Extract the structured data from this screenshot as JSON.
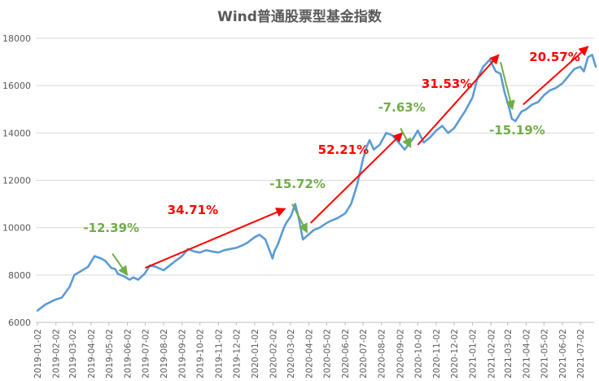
{
  "chart_data": {
    "type": "line",
    "title": "Wind普通股票型基金指数",
    "ylim": [
      6000,
      18000
    ],
    "yticks": [
      6000,
      8000,
      10000,
      12000,
      14000,
      16000,
      18000
    ],
    "grid": true,
    "x_labels": [
      "2019-01-02",
      "2019-02-02",
      "2019-03-02",
      "2019-04-02",
      "2019-05-02",
      "2019-06-02",
      "2019-07-02",
      "2019-08-02",
      "2019-09-02",
      "2019-10-02",
      "2019-11-02",
      "2019-12-02",
      "2020-01-02",
      "2020-02-02",
      "2020-03-02",
      "2020-04-02",
      "2020-05-02",
      "2020-06-02",
      "2020-07-02",
      "2020-08-02",
      "2020-09-02",
      "2020-10-02",
      "2020-11-02",
      "2020-12-02",
      "2021-01-02",
      "2021-02-02",
      "2021-03-02",
      "2021-04-02",
      "2021-05-02",
      "2021-06-02",
      "2021-07-02"
    ],
    "series_color": "#5b9bd5",
    "series": [
      {
        "x": [
          "2019-01-02",
          "2019-01-15",
          "2019-01-31",
          "2019-02-12",
          "2019-02-25",
          "2019-03-05",
          "2019-03-15",
          "2019-03-28",
          "2019-04-08",
          "2019-04-19",
          "2019-04-26",
          "2019-05-06",
          "2019-05-13",
          "2019-05-17",
          "2019-05-27",
          "2019-06-06",
          "2019-06-12",
          "2019-06-20",
          "2019-07-01",
          "2019-07-10",
          "2019-07-20",
          "2019-08-02",
          "2019-08-12",
          "2019-08-22",
          "2019-09-02",
          "2019-09-12",
          "2019-09-22",
          "2019-10-02",
          "2019-10-12",
          "2019-10-22",
          "2019-11-02",
          "2019-11-12",
          "2019-11-22",
          "2019-12-02",
          "2019-12-12",
          "2019-12-20",
          "2020-01-02",
          "2020-01-10",
          "2020-01-20",
          "2020-02-01",
          "2020-02-04",
          "2020-02-10",
          "2020-02-20",
          "2020-02-24",
          "2020-03-03",
          "2020-03-10",
          "2020-03-16",
          "2020-03-23",
          "2020-04-01",
          "2020-04-10",
          "2020-04-20",
          "2020-05-02",
          "2020-05-10",
          "2020-05-20",
          "2020-06-02",
          "2020-06-12",
          "2020-06-22",
          "2020-07-02",
          "2020-07-08",
          "2020-07-13",
          "2020-07-20",
          "2020-07-30",
          "2020-08-10",
          "2020-08-20",
          "2020-08-31",
          "2020-09-10",
          "2020-09-25",
          "2020-10-02",
          "2020-10-12",
          "2020-10-22",
          "2020-11-02",
          "2020-11-12",
          "2020-11-22",
          "2020-12-02",
          "2020-12-12",
          "2020-12-20",
          "2021-01-02",
          "2021-01-10",
          "2021-01-20",
          "2021-01-31",
          "2021-02-10",
          "2021-02-18",
          "2021-02-25",
          "2021-03-03",
          "2021-03-09",
          "2021-03-15",
          "2021-03-25",
          "2021-04-02",
          "2021-04-12",
          "2021-04-22",
          "2021-05-02",
          "2021-05-12",
          "2021-05-22",
          "2021-06-02",
          "2021-06-12",
          "2021-06-22",
          "2021-07-02",
          "2021-07-08",
          "2021-07-15",
          "2021-07-22",
          "2021-07-28"
        ],
        "y": [
          6500,
          6750,
          6950,
          7050,
          7500,
          8000,
          8150,
          8350,
          8800,
          8700,
          8600,
          8300,
          8250,
          8050,
          7950,
          7800,
          7900,
          7800,
          8050,
          8400,
          8350,
          8200,
          8400,
          8600,
          8800,
          9100,
          9000,
          8950,
          9050,
          9000,
          8950,
          9050,
          9100,
          9150,
          9250,
          9350,
          9600,
          9700,
          9500,
          8700,
          9000,
          9300,
          10000,
          10200,
          10500,
          11000,
          10400,
          9500,
          9700,
          9900,
          10000,
          10200,
          10300,
          10400,
          10600,
          11000,
          11800,
          12900,
          13400,
          13700,
          13300,
          13500,
          14000,
          13900,
          13600,
          13300,
          13800,
          14100,
          13600,
          13800,
          14100,
          14300,
          14000,
          14200,
          14600,
          14900,
          15500,
          16300,
          16800,
          17100,
          16600,
          16500,
          15700,
          15200,
          14600,
          14500,
          14900,
          15000,
          15200,
          15300,
          15600,
          15800,
          15900,
          16100,
          16400,
          16700,
          16800,
          16600,
          17200,
          17300,
          16800
        ]
      }
    ],
    "annotations": [
      {
        "text": "-12.39%",
        "color": "#70ad47",
        "x": "2019-05-06"
      },
      {
        "text": "34.71%",
        "color": "#ff0000",
        "x": "2019-09-20"
      },
      {
        "text": "-15.72%",
        "color": "#70ad47",
        "x": "2020-03-14"
      },
      {
        "text": "52.21%",
        "color": "#ff0000",
        "x": "2020-05-30"
      },
      {
        "text": "-7.63%",
        "color": "#70ad47",
        "x": "2020-09-05"
      },
      {
        "text": "31.53%",
        "color": "#ff0000",
        "x": "2020-11-20"
      },
      {
        "text": "-15.19%",
        "color": "#70ad47",
        "x": "2021-03-18"
      },
      {
        "text": "20.57%",
        "color": "#ff0000",
        "x": "2021-05-20"
      }
    ],
    "arrows": [
      {
        "color": "#70ad47",
        "from": [
          "2019-05-08",
          8900
        ],
        "to": [
          "2019-06-02",
          8000
        ]
      },
      {
        "color": "#ff0000",
        "from": [
          "2019-07-02",
          8300
        ],
        "to": [
          "2020-02-22",
          10800
        ]
      },
      {
        "color": "#70ad47",
        "from": [
          "2020-03-05",
          11000
        ],
        "to": [
          "2020-03-30",
          9800
        ]
      },
      {
        "color": "#ff0000",
        "from": [
          "2020-04-05",
          10200
        ],
        "to": [
          "2020-09-06",
          14000
        ]
      },
      {
        "color": "#70ad47",
        "from": [
          "2020-09-03",
          14200
        ],
        "to": [
          "2020-09-20",
          13400
        ]
      },
      {
        "color": "#ff0000",
        "from": [
          "2020-10-02",
          13500
        ],
        "to": [
          "2021-02-15",
          17300
        ]
      },
      {
        "color": "#70ad47",
        "from": [
          "2021-02-18",
          17000
        ],
        "to": [
          "2021-03-10",
          15000
        ]
      },
      {
        "color": "#ff0000",
        "from": [
          "2021-03-28",
          15200
        ],
        "to": [
          "2021-07-15",
          17650
        ]
      }
    ]
  }
}
